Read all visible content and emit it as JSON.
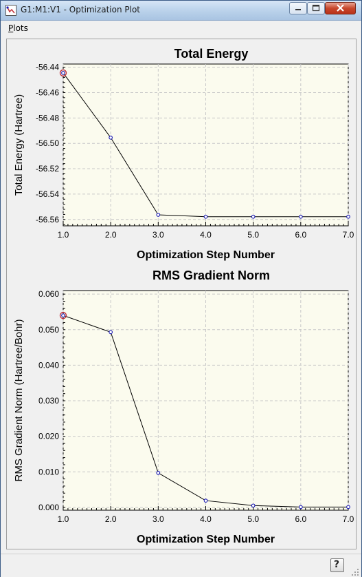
{
  "window": {
    "title": "G1:M1:V1 - Optimization Plot",
    "controls": [
      "minimize",
      "maximize",
      "close"
    ],
    "icon": "app-icon"
  },
  "menu": {
    "plots_mnemonic": "P",
    "plots_rest": "lots"
  },
  "statusbar": {
    "help_label": "?",
    "help_icon": "help-icon"
  },
  "colors": {
    "grid": "#c8c8c8",
    "plot_bg": "#fbfbee",
    "line": "#000000",
    "marker": "#1a1ab4",
    "highlight": "#c0303a"
  },
  "chart_data": [
    {
      "type": "line",
      "title": "Total Energy",
      "xlabel": "Optimization Step Number",
      "ylabel": "Total Energy (Hartree)",
      "x": [
        1,
        2,
        3,
        4,
        5,
        6,
        7
      ],
      "y": [
        -56.4445,
        -56.4955,
        -56.5563,
        -56.5578,
        -56.5578,
        -56.5578,
        -56.5578
      ],
      "xlim": [
        1.0,
        7.0
      ],
      "ylim": [
        -56.565,
        -56.4375
      ],
      "xticks": [
        1,
        2,
        3,
        4,
        5,
        6,
        7
      ],
      "xtick_labels": [
        "1.0",
        "2.0",
        "3.0",
        "4.0",
        "5.0",
        "6.0",
        "7.0"
      ],
      "yticks": [
        -56.44,
        -56.46,
        -56.48,
        -56.5,
        -56.52,
        -56.54,
        -56.56
      ],
      "ytick_labels": [
        "-56.44",
        "-56.46",
        "-56.48",
        "-56.50",
        "-56.52",
        "-56.54",
        "-56.56"
      ],
      "highlight_index": 0,
      "grid": true
    },
    {
      "type": "line",
      "title": "RMS Gradient Norm",
      "xlabel": "Optimization Step Number",
      "ylabel": "RMS Gradient Norm (Hartree/Bohr)",
      "x": [
        1,
        2,
        3,
        4,
        5,
        6,
        7
      ],
      "y": [
        0.054,
        0.0493,
        0.0097,
        0.0019,
        0.0005,
        0.0001,
        0.0001
      ],
      "xlim": [
        1.0,
        7.0
      ],
      "ylim": [
        -0.0008,
        0.061
      ],
      "xticks": [
        1,
        2,
        3,
        4,
        5,
        6,
        7
      ],
      "xtick_labels": [
        "1.0",
        "2.0",
        "3.0",
        "4.0",
        "5.0",
        "6.0",
        "7.0"
      ],
      "yticks": [
        0.0,
        0.01,
        0.02,
        0.03,
        0.04,
        0.05,
        0.06
      ],
      "ytick_labels": [
        "0.000",
        "0.010",
        "0.020",
        "0.030",
        "0.040",
        "0.050",
        "0.060"
      ],
      "highlight_index": 0,
      "grid": true
    }
  ]
}
